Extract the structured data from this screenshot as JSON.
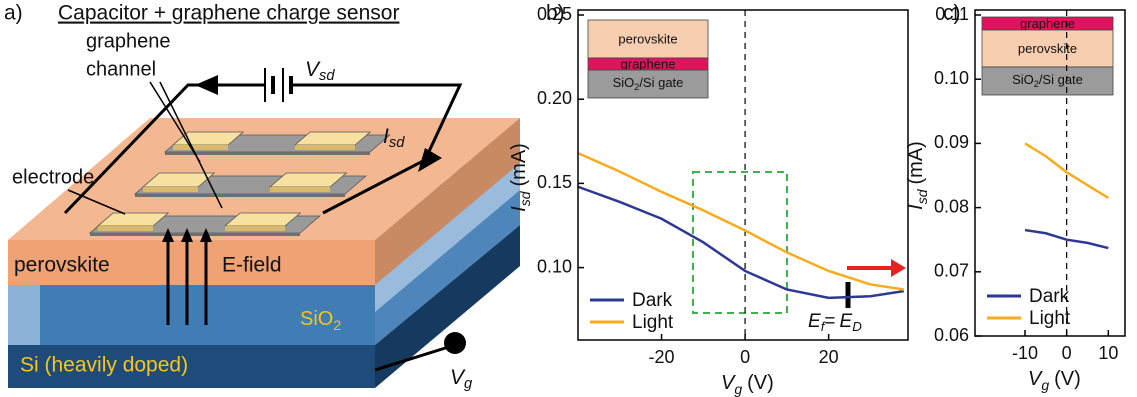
{
  "diagram": {
    "panel_label": "a)",
    "title": "Capacitor + graphene charge sensor",
    "graphene_channel": [
      "graphene",
      "channel"
    ],
    "electrode": "electrode",
    "source_drain_voltage": {
      "symbol": "V",
      "subscript": "sd"
    },
    "source_drain_current": {
      "symbol": "I",
      "subscript": "sd"
    },
    "perovskite": "perovskite",
    "e_field": "E-field",
    "oxide": {
      "text": "SiO",
      "subscript": "2"
    },
    "substrate": "Si (heavily doped)",
    "gate_voltage": {
      "symbol": "V",
      "subscript": "g"
    }
  },
  "chart_data": [
    {
      "type": "line",
      "panel_label": "b)",
      "xlabel": {
        "symbol": "V",
        "subscript": "g",
        "unit": "(V)"
      },
      "ylabel": {
        "symbol": "I",
        "subscript": "sd",
        "unit": "(mA)"
      },
      "x": [
        -40,
        -30,
        -20,
        -10,
        0,
        10,
        20,
        30,
        38
      ],
      "series": [
        {
          "name": "Dark",
          "color": "#2e3893",
          "values": [
            0.148,
            0.139,
            0.129,
            0.115,
            0.098,
            0.087,
            0.082,
            0.083,
            0.086
          ]
        },
        {
          "name": "Light",
          "color": "#f6ac1c",
          "values": [
            0.168,
            0.157,
            0.145,
            0.134,
            0.122,
            0.109,
            0.098,
            0.09,
            0.087
          ]
        }
      ],
      "xlim": [
        -40,
        39
      ],
      "xticks": [
        -20,
        0,
        20
      ],
      "ylim": [
        0.057,
        0.25
      ],
      "yticks": [
        0.25,
        {
          "value": 0.2,
          "label": "0.20"
        },
        0.15,
        {
          "value": 0.1,
          "label": "0.10"
        }
      ],
      "legend": "lower left",
      "inset": [
        "perovskite",
        "graphene",
        {
          "text": "SiO",
          "subscript": "2",
          "rest": "/Si gate"
        }
      ],
      "annotation": {
        "left": "E",
        "left_sub": "f",
        "op": "=",
        "right": "E",
        "right_sub": "D"
      }
    },
    {
      "type": "line",
      "panel_label": "c)",
      "xlabel": {
        "symbol": "V",
        "subscript": "g",
        "unit": "(V)"
      },
      "ylabel": {
        "symbol": "I",
        "subscript": "sd",
        "unit": "(mA)"
      },
      "x": [
        -10,
        -5,
        0,
        5,
        10
      ],
      "series": [
        {
          "name": "Dark",
          "color": "#2e3893",
          "values": [
            0.0765,
            0.076,
            0.075,
            0.0745,
            0.0737
          ]
        },
        {
          "name": "Light",
          "color": "#f6ac1c",
          "values": [
            0.09,
            0.088,
            0.0855,
            0.0835,
            0.0815
          ]
        }
      ],
      "xlim": [
        -22,
        14
      ],
      "xticks": [
        -10,
        0,
        10
      ],
      "ylim": [
        0.06,
        0.11
      ],
      "yticks": [
        {
          "value": 0.11,
          "label": "0.11"
        },
        {
          "value": 0.1,
          "label": "0.10"
        },
        {
          "value": 0.09,
          "label": "0.09"
        },
        {
          "value": 0.08,
          "label": "0.08"
        },
        {
          "value": 0.07,
          "label": "0.07"
        },
        {
          "value": 0.06,
          "label": "0.06"
        }
      ],
      "legend": "lower left",
      "inset": [
        "graphene",
        "perovskite",
        {
          "text": "SiO",
          "subscript": "2",
          "rest": "/Si gate"
        }
      ]
    }
  ]
}
